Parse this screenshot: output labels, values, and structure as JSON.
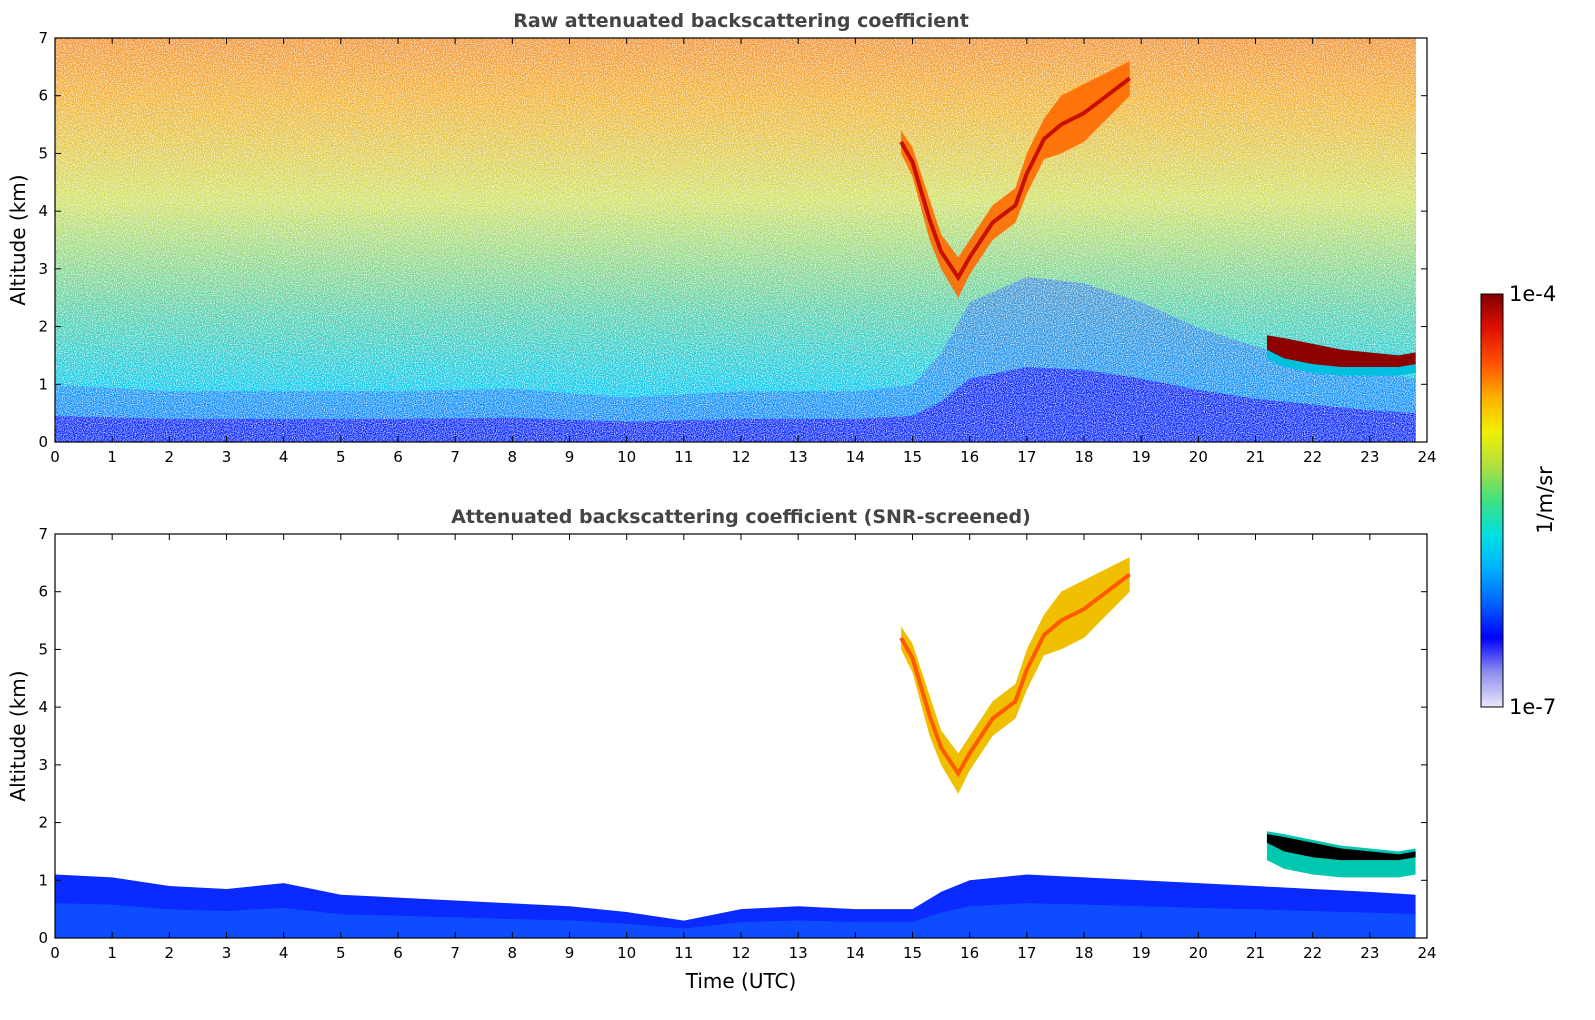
{
  "chart_data": [
    {
      "type": "heatmap",
      "title": "Raw attenuated backscattering coefficient",
      "xlabel": "",
      "ylabel": "Altitude (km)",
      "xlim": [
        0,
        24
      ],
      "ylim": [
        0,
        7
      ],
      "x_ticks": [
        "0",
        "1",
        "2",
        "3",
        "4",
        "5",
        "6",
        "7",
        "8",
        "9",
        "10",
        "11",
        "12",
        "13",
        "14",
        "15",
        "16",
        "17",
        "18",
        "19",
        "20",
        "21",
        "22",
        "23",
        "24"
      ],
      "y_ticks": [
        "0",
        "1",
        "2",
        "3",
        "4",
        "5",
        "6",
        "7"
      ],
      "data_end_time": 23.8,
      "boundary_layer": {
        "time": [
          0,
          2,
          4,
          6,
          8,
          10,
          12,
          14,
          15,
          15.5,
          16,
          17,
          18,
          19,
          20,
          21,
          22,
          23,
          23.8
        ],
        "top_km": [
          0.45,
          0.4,
          0.4,
          0.4,
          0.42,
          0.35,
          0.4,
          0.4,
          0.45,
          0.7,
          1.1,
          1.3,
          1.25,
          1.1,
          0.9,
          0.75,
          0.65,
          0.55,
          0.5
        ]
      },
      "cirrus_cloud": {
        "time": [
          14.8,
          15.0,
          15.3,
          15.5,
          15.8,
          16.0,
          16.4,
          16.8,
          17.0,
          17.3,
          17.6,
          18.0,
          18.4,
          18.8
        ],
        "base_km": [
          5.0,
          4.6,
          3.5,
          3.0,
          2.5,
          2.9,
          3.5,
          3.8,
          4.3,
          4.9,
          5.0,
          5.2,
          5.6,
          6.0
        ],
        "top_km": [
          5.4,
          5.1,
          4.2,
          3.6,
          3.2,
          3.5,
          4.1,
          4.4,
          5.0,
          5.6,
          6.0,
          6.2,
          6.4,
          6.6
        ]
      },
      "low_cloud": {
        "time": [
          21.2,
          21.5,
          22.0,
          22.5,
          23.0,
          23.5,
          23.8
        ],
        "base_km": [
          1.6,
          1.45,
          1.35,
          1.3,
          1.3,
          1.3,
          1.35
        ],
        "top_km": [
          1.85,
          1.8,
          1.7,
          1.6,
          1.55,
          1.5,
          1.55
        ]
      },
      "colorbar": {
        "min_label": "1e-7",
        "max_label": "1e-4",
        "label": "1/m/sr",
        "scale": "log"
      }
    },
    {
      "type": "heatmap",
      "title": "Attenuated backscattering coefficient (SNR-screened)",
      "xlabel": "Time (UTC)",
      "ylabel": "Altitude (km)",
      "xlim": [
        0,
        24
      ],
      "ylim": [
        0,
        7
      ],
      "x_ticks": [
        "0",
        "1",
        "2",
        "3",
        "4",
        "5",
        "6",
        "7",
        "8",
        "9",
        "10",
        "11",
        "12",
        "13",
        "14",
        "15",
        "16",
        "17",
        "18",
        "19",
        "20",
        "21",
        "22",
        "23",
        "24"
      ],
      "y_ticks": [
        "0",
        "1",
        "2",
        "3",
        "4",
        "5",
        "6",
        "7"
      ],
      "data_end_time": 23.8,
      "screened_layer": {
        "time": [
          0,
          1,
          2,
          3,
          4,
          5,
          6,
          7,
          8,
          9,
          10,
          11,
          12,
          13,
          14,
          15,
          15.5,
          16,
          17,
          18,
          19,
          20,
          21,
          22,
          23,
          23.8
        ],
        "top_km": [
          1.1,
          1.05,
          0.9,
          0.85,
          0.95,
          0.75,
          0.7,
          0.65,
          0.6,
          0.55,
          0.45,
          0.3,
          0.5,
          0.55,
          0.5,
          0.5,
          0.8,
          1.0,
          1.1,
          1.05,
          1.0,
          0.95,
          0.9,
          0.85,
          0.8,
          0.75
        ]
      },
      "cirrus_cloud": {
        "time": [
          14.8,
          15.0,
          15.3,
          15.5,
          15.8,
          16.0,
          16.4,
          16.8,
          17.0,
          17.3,
          17.6,
          18.0,
          18.4,
          18.8
        ],
        "base_km": [
          5.0,
          4.6,
          3.5,
          3.0,
          2.5,
          2.9,
          3.5,
          3.8,
          4.3,
          4.9,
          5.0,
          5.2,
          5.6,
          6.0
        ],
        "top_km": [
          5.4,
          5.1,
          4.2,
          3.6,
          3.2,
          3.5,
          4.1,
          4.4,
          5.0,
          5.6,
          6.0,
          6.2,
          6.4,
          6.6
        ]
      },
      "low_cloud": {
        "time": [
          21.2,
          21.5,
          22.0,
          22.5,
          23.0,
          23.5,
          23.8
        ],
        "base_km": [
          1.6,
          1.45,
          1.35,
          1.3,
          1.3,
          1.3,
          1.35
        ],
        "top_km": [
          1.85,
          1.8,
          1.7,
          1.6,
          1.55,
          1.5,
          1.55
        ]
      }
    }
  ],
  "colors": {
    "colormap": [
      "#e8e8f8",
      "#9090f0",
      "#0000ff",
      "#0060ff",
      "#00b0ff",
      "#00e0e0",
      "#40e080",
      "#b0e040",
      "#f0f000",
      "#ffb000",
      "#ff5000",
      "#e01000",
      "#800000"
    ],
    "cloud_core": "#000000",
    "title": "#444444"
  }
}
